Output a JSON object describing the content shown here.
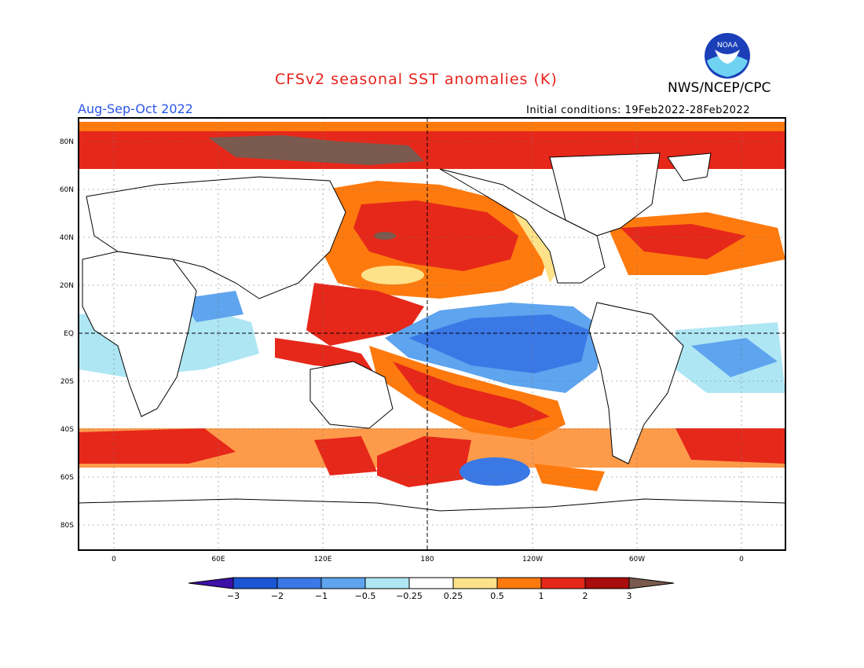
{
  "header": {
    "title": "CFSv2 seasonal SST anomalies (K)",
    "agency": "NWS/NCEP/CPC",
    "season": "Aug-Sep-Oct 2022",
    "initial_conditions": "Initial conditions: 19Feb2022-28Feb2022",
    "logo_text": "NOAA"
  },
  "map": {
    "lat_labels": [
      "80N",
      "60N",
      "40N",
      "20N",
      "EQ",
      "20S",
      "40S",
      "60S",
      "80S"
    ],
    "lon_labels": [
      "0",
      "60E",
      "120E",
      "180",
      "120W",
      "60W",
      "0"
    ]
  },
  "colorbar": {
    "labels": [
      "−3",
      "−2",
      "−1",
      "−0.5",
      "−0.25",
      "0.25",
      "0.5",
      "1",
      "2",
      "3"
    ],
    "colors": [
      "#3d10a8",
      "#1a55d4",
      "#3a78e6",
      "#5ea4ee",
      "#aee6f4",
      "#ffffff",
      "#fde28a",
      "#fe7a0e",
      "#e6281a",
      "#a80c0c",
      "#7a5a4e"
    ]
  }
}
